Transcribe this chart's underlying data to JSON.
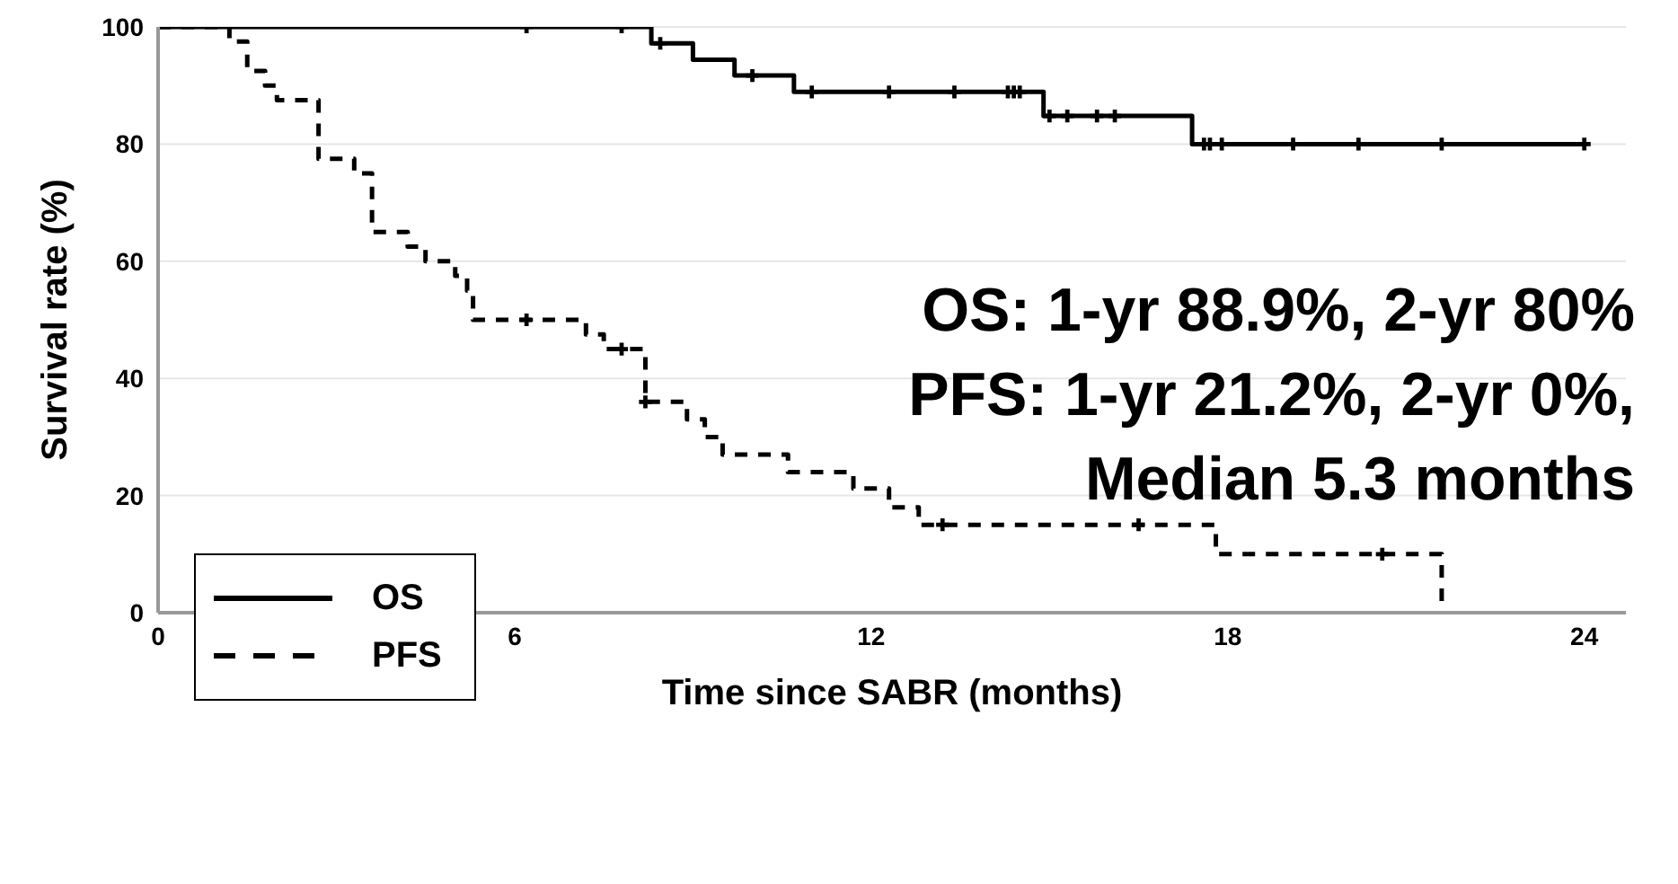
{
  "chart_data": {
    "type": "step",
    "xlabel": "Time since SABR (months)",
    "ylabel": "Survival rate (%)",
    "xlim": [
      0,
      24.7
    ],
    "xticks": [
      0,
      6,
      12,
      18,
      24
    ],
    "ylim": [
      0,
      100
    ],
    "yticks": [
      0,
      20,
      40,
      60,
      80,
      100
    ],
    "grid": "y",
    "legend": "bottom left",
    "annotations": [
      "OS: 1-yr 88.9%, 2-yr 80%",
      "PFS: 1-yr 21.2%, 2-yr 0%,",
      "Median 5.3 months"
    ],
    "series": [
      {
        "name": "OS",
        "color": "#000000",
        "line_style": "solid",
        "marker": "none",
        "x": [
          0,
          8.3,
          9.0,
          9.7,
          10.7,
          14.9,
          17.4,
          24
        ],
        "values": [
          100,
          97.2,
          94.4,
          91.7,
          88.9,
          84.8,
          80,
          80
        ]
      },
      {
        "name": "PFS",
        "color": "#000000",
        "line_style": "dashed",
        "marker": "none",
        "x": [
          0,
          1.2,
          1.5,
          1.8,
          2.0,
          2.7,
          3.3,
          3.6,
          4.2,
          4.5,
          5.0,
          5.2,
          5.3,
          7.2,
          7.5,
          8.2,
          8.9,
          9.2,
          9.5,
          10.6,
          11.7,
          12.3,
          12.8,
          17.8,
          21.6
        ],
        "values": [
          100,
          97.5,
          92.5,
          90,
          87.5,
          77.5,
          75,
          65,
          62.5,
          60,
          57.5,
          55,
          50,
          47.5,
          45,
          36,
          33,
          30,
          27,
          24,
          21.2,
          18,
          15,
          10,
          0
        ]
      },
      {
        "type": "scatter",
        "color": "#000000",
        "marker": "cross",
        "x": [
          6.2,
          7.8,
          8.45,
          10.0,
          11.0,
          12.3,
          13.4,
          14.3,
          14.4,
          14.5,
          15.0,
          15.3,
          15.8,
          16.1,
          17.6,
          17.7,
          17.9,
          19.1,
          20.2,
          21.6,
          24
        ],
        "values": [
          100,
          100,
          97.2,
          91.7,
          88.9,
          88.9,
          88.9,
          88.9,
          88.9,
          88.9,
          84.8,
          84.8,
          84.8,
          84.8,
          80,
          80,
          80,
          80,
          80,
          80,
          80
        ]
      },
      {
        "type": "scatter",
        "color": "#000000",
        "marker": "cross",
        "x": [
          6.2,
          7.8,
          8.2,
          13.2,
          16.5,
          20.6
        ],
        "values": [
          50,
          45,
          36,
          15,
          15,
          10
        ]
      }
    ]
  }
}
